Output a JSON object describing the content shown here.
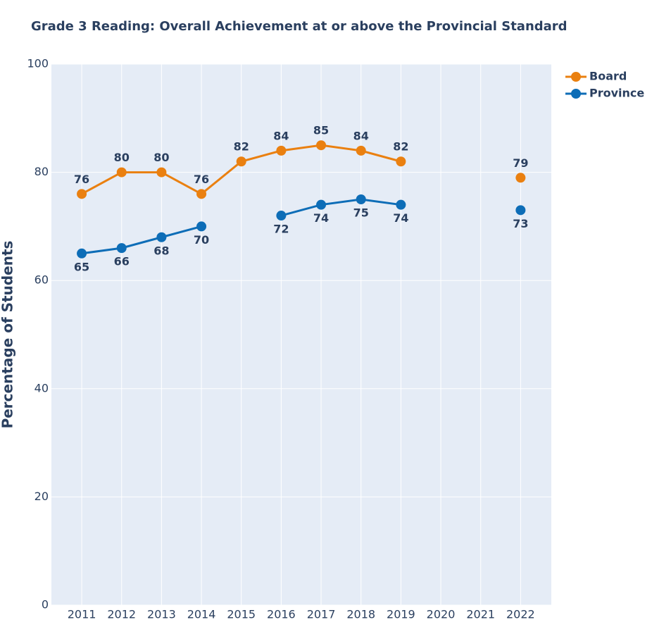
{
  "chart_data": {
    "type": "line",
    "title": "Grade 3 Reading: Overall Achievement at or above the Provincial Standard",
    "y_label": "Percentage of Students",
    "x": [
      2011,
      2012,
      2013,
      2014,
      2015,
      2016,
      2017,
      2018,
      2019,
      2020,
      2021,
      2022
    ],
    "xlim": [
      2010.24,
      2022.77
    ],
    "xticks": [
      2011,
      2012,
      2013,
      2014,
      2015,
      2016,
      2017,
      2018,
      2019,
      2020,
      2021,
      2022
    ],
    "ylim": [
      0,
      100
    ],
    "yticks": [
      0,
      20,
      40,
      60,
      80,
      100
    ],
    "grid": true,
    "legend": "right",
    "series": [
      {
        "name": "Board",
        "color": "#ea8010",
        "values": [
          76,
          80,
          80,
          76,
          82,
          84,
          85,
          84,
          82,
          null,
          null,
          79
        ]
      },
      {
        "name": "Province",
        "color": "#0d6db7",
        "values": [
          65,
          66,
          68,
          70,
          null,
          72,
          74,
          75,
          74,
          null,
          null,
          73
        ]
      }
    ]
  }
}
